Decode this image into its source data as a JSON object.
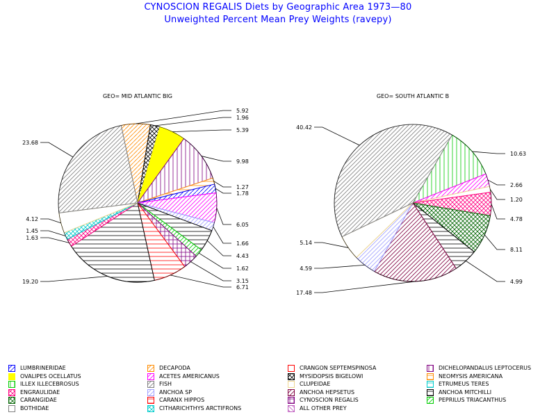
{
  "title": "CYNOSCION REGALIS Diets by Geographic Area 1973—80",
  "subtitle": "Unweighted Percent Mean Prey Weights (ravepy)",
  "chart_data": [
    {
      "type": "pie",
      "title": "GEO= MID ATLANTIC BIG",
      "slices": [
        {
          "category": "DECAPODA",
          "value": 5.92
        },
        {
          "category": "MYSIDOPSIS BIGELOWI",
          "value": 1.96
        },
        {
          "category": "OVALIPES OCELLATUS",
          "value": 5.39
        },
        {
          "category": "DICHELOPANDALUS LEPTOCERUS",
          "value": 9.98
        },
        {
          "category": "NEOMYSIS AMERICANA",
          "value": 1.27
        },
        {
          "category": "LUMBRINERIDAE",
          "value": 1.78
        },
        {
          "category": "ACETES AMERICANUS",
          "value": 6.05
        },
        {
          "category": "ANCHOA SP",
          "value": 1.66
        },
        {
          "category": "ANCHOA MITCHILLI",
          "value": 4.43
        },
        {
          "category": "PEPRILUS TRIACANTHUS",
          "value": 1.62
        },
        {
          "category": "CYNOSCION REGALIS",
          "value": 3.15
        },
        {
          "category": "CARANX HIPPOS",
          "value": 6.71
        },
        {
          "category": "ANCHOA MITCHILLI",
          "value": 19.2
        },
        {
          "category": "ENGRAULIDAE",
          "value": 1.63
        },
        {
          "category": "CITHARICHTHYS ARCTIFRONS",
          "value": 1.45
        },
        {
          "category": "CLUPEIDAE",
          "value": 4.12
        },
        {
          "category": "FISH",
          "value": 23.68
        }
      ]
    },
    {
      "type": "pie",
      "title": "GEO= SOUTH ATLANTIC B",
      "slices": [
        {
          "category": "ILLEX ILLECEBROSUS",
          "value": 10.63
        },
        {
          "category": "ACETES AMERICANUS",
          "value": 2.66
        },
        {
          "category": "CLUPEIDAE",
          "value": 1.2
        },
        {
          "category": "ENGRAULIDAE",
          "value": 4.78
        },
        {
          "category": "CARANGIDAE",
          "value": 8.11
        },
        {
          "category": "ANCHOA MITCHILLI",
          "value": 4.99
        },
        {
          "category": "ANCHOA HEPSETUS",
          "value": 17.48
        },
        {
          "category": "ANCHOA SP",
          "value": 4.59
        },
        {
          "category": "CLUPEIDAE",
          "value": 5.14
        },
        {
          "category": "FISH",
          "value": 40.42
        }
      ]
    }
  ],
  "legend": [
    {
      "label": "LUMBRINERIDAE",
      "color": "#0000ff",
      "pattern": "diag-up-single"
    },
    {
      "label": "DECAPODA",
      "color": "#ff8c00",
      "pattern": "diag-up-single"
    },
    {
      "label": "CRANGON SEPTEMSPINOSA",
      "color": "#ff0000",
      "pattern": "empty"
    },
    {
      "label": "DICHELOPANDALUS LEPTOCERUS",
      "color": "#800080",
      "pattern": "vertical"
    },
    {
      "label": "OVALIPES OCELLATUS",
      "color": "#ffff00",
      "pattern": "solid"
    },
    {
      "label": "ACETES AMERICANUS",
      "color": "#ff00ff",
      "pattern": "diag-up"
    },
    {
      "label": "MYSIDOPSIS BIGELOWI",
      "color": "#000000",
      "pattern": "crosshatch"
    },
    {
      "label": "NEOMYSIS AMERICANA",
      "color": "#ff8c00",
      "pattern": "horizontal"
    },
    {
      "label": "ILLEX ILLECEBROSUS",
      "color": "#00cc00",
      "pattern": "vertical"
    },
    {
      "label": "FISH",
      "color": "#808080",
      "pattern": "diag-up"
    },
    {
      "label": "CLUPEIDAE",
      "color": "#f0d890",
      "pattern": "empty"
    },
    {
      "label": "ETRUMEUS TERES",
      "color": "#00cccc",
      "pattern": "horizontal"
    },
    {
      "label": "ENGRAULIDAE",
      "color": "#ff0080",
      "pattern": "crosshatch"
    },
    {
      "label": "ANCHOA SP",
      "color": "#a0a0ff",
      "pattern": "diag-up"
    },
    {
      "label": "ANCHOA HEPSETUS",
      "color": "#800040",
      "pattern": "diag-up"
    },
    {
      "label": "ANCHOA MITCHILLI",
      "color": "#000000",
      "pattern": "horizontal"
    },
    {
      "label": "CARANGIDAE",
      "color": "#006400",
      "pattern": "crosshatch"
    },
    {
      "label": "CARANX HIPPOS",
      "color": "#ff0000",
      "pattern": "horizontal"
    },
    {
      "label": "CYNOSCION REGALIS",
      "color": "#800080",
      "pattern": "grid"
    },
    {
      "label": "PEPRILUS TRIACANTHUS",
      "color": "#00cc00",
      "pattern": "diag-up"
    },
    {
      "label": "BOTHIDAE",
      "color": "#808080",
      "pattern": "empty"
    },
    {
      "label": "CITHARICHTHYS ARCTIFRONS",
      "color": "#00cccc",
      "pattern": "crosshatch"
    },
    {
      "label": "ALL OTHER PREY",
      "color": "#c060c0",
      "pattern": "diag-down"
    }
  ]
}
